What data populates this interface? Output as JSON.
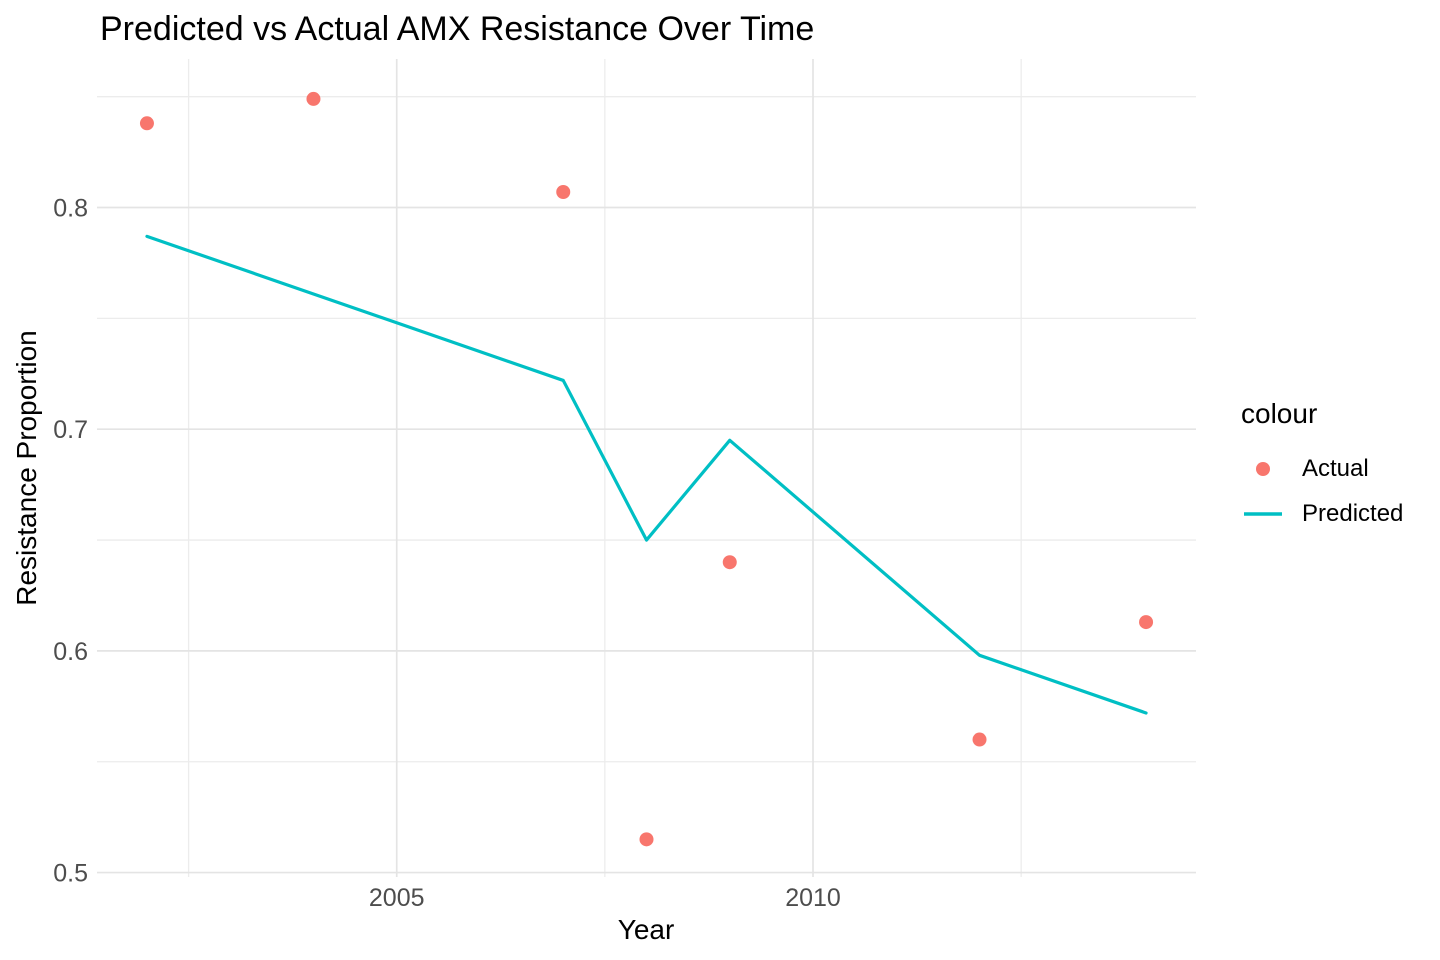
{
  "title": "Predicted vs Actual AMX Resistance Over Time",
  "legend": {
    "title": "colour",
    "items": [
      {
        "label": "Actual",
        "glyph": "point",
        "color": "#F8766D"
      },
      {
        "label": "Predicted",
        "glyph": "line",
        "color": "#00BFC4"
      }
    ]
  },
  "palette": {
    "actual": "#F8766D",
    "predicted": "#00BFC4",
    "grid_major": "#E4E4E4",
    "grid_minor": "#ECECEC",
    "tick_text": "#4D4D4D",
    "text": "#000000",
    "background": "#FFFFFF"
  },
  "chart_data": {
    "type": "line",
    "title": "Predicted vs Actual AMX Resistance Over Time",
    "xlabel": "Year",
    "ylabel": "Resistance Proportion",
    "xlim": [
      2001.4,
      2014.6
    ],
    "ylim": [
      0.498,
      0.867
    ],
    "grid": true,
    "legend_position": "right",
    "x_ticks": [
      {
        "v": 2005,
        "label": "2005"
      },
      {
        "v": 2010,
        "label": "2010"
      }
    ],
    "y_ticks": [
      {
        "v": 0.5,
        "label": "0.5"
      },
      {
        "v": 0.6,
        "label": "0.6"
      },
      {
        "v": 0.7,
        "label": "0.7"
      },
      {
        "v": 0.8,
        "label": "0.8"
      }
    ],
    "x_minor_gridlines": [
      2002.5,
      2007.5,
      2012.5
    ],
    "y_minor_gridlines": [
      0.55,
      0.65,
      0.75,
      0.85
    ],
    "series": [
      {
        "name": "Actual",
        "kind": "scatter",
        "color": "#F8766D",
        "x": [
          2002,
          2004,
          2007,
          2008,
          2009,
          2012,
          2014
        ],
        "y": [
          0.838,
          0.849,
          0.807,
          0.515,
          0.64,
          0.56,
          0.613
        ]
      },
      {
        "name": "Predicted",
        "kind": "line",
        "color": "#00BFC4",
        "x": [
          2002,
          2007,
          2008,
          2009,
          2012,
          2014
        ],
        "y": [
          0.787,
          0.722,
          0.65,
          0.695,
          0.598,
          0.572
        ]
      }
    ]
  }
}
